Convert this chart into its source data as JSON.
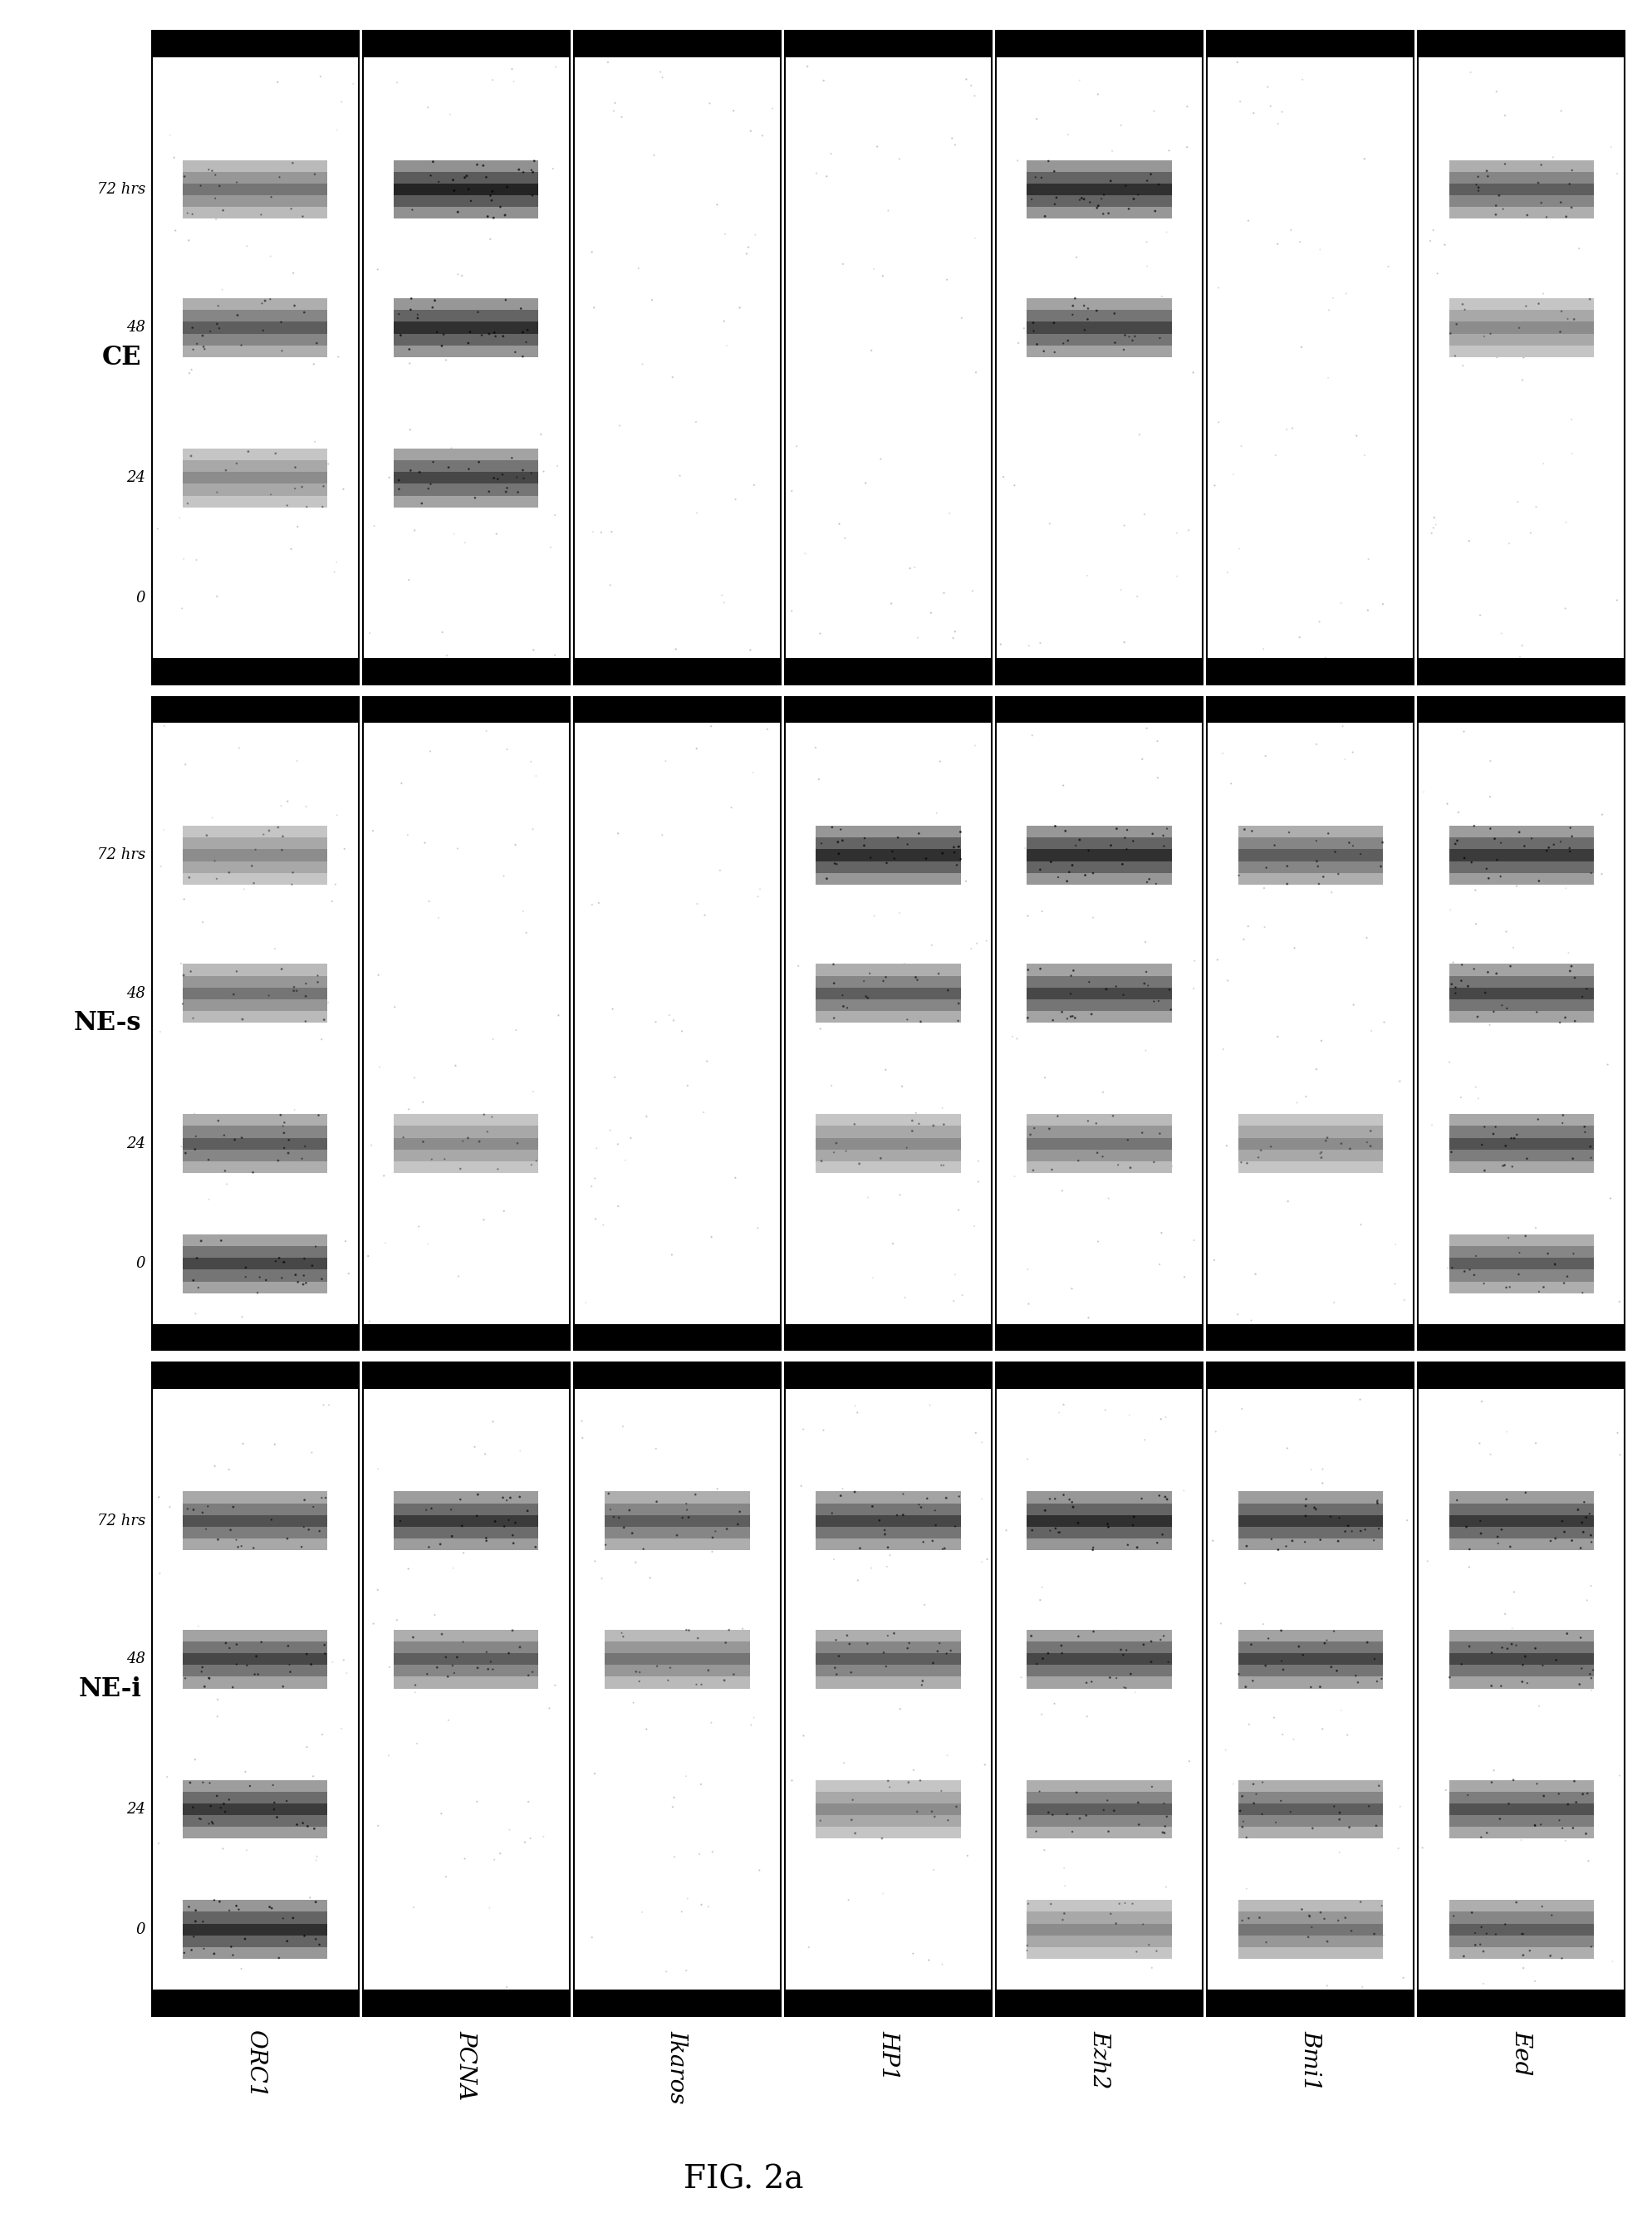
{
  "figure_title": "FIG. 2a",
  "row_labels": [
    "NE-i",
    "NE-s",
    "CE"
  ],
  "col_labels": [
    "ORC1",
    "PCNA",
    "Ikaros",
    "HP1",
    "Ezh2",
    "Bmi1",
    "Eed"
  ],
  "time_labels": [
    "0",
    "24",
    "48",
    "72 hrs"
  ],
  "bg_color": "#ffffff",
  "box_border_color": "#000000",
  "band_color": "#000000",
  "noise_color": "#333333",
  "rows": 3,
  "cols": 7,
  "band_data": {
    "NE-i": {
      "ORC1": {
        "t0": true,
        "t24": true,
        "t48": true,
        "t72": true,
        "intensity": [
          0.9,
          0.85,
          0.8,
          0.75
        ]
      },
      "PCNA": {
        "t0": false,
        "t24": false,
        "t48": true,
        "t72": true,
        "intensity": [
          0,
          0,
          0.7,
          0.85
        ]
      },
      "Ikaros": {
        "t0": false,
        "t24": false,
        "t48": true,
        "t72": true,
        "intensity": [
          0,
          0,
          0.6,
          0.7
        ]
      },
      "HP1": {
        "t0": false,
        "t24": true,
        "t48": true,
        "t72": true,
        "intensity": [
          0,
          0.5,
          0.7,
          0.8
        ]
      },
      "Ezh2": {
        "t0": true,
        "t24": true,
        "t48": true,
        "t72": true,
        "intensity": [
          0.5,
          0.7,
          0.8,
          0.9
        ]
      },
      "Bmi1": {
        "t0": true,
        "t24": true,
        "t48": true,
        "t72": true,
        "intensity": [
          0.6,
          0.7,
          0.8,
          0.85
        ]
      },
      "Eed": {
        "t0": true,
        "t24": true,
        "t48": true,
        "t72": true,
        "intensity": [
          0.7,
          0.75,
          0.8,
          0.85
        ]
      }
    },
    "NE-s": {
      "ORC1": {
        "t0": true,
        "t24": true,
        "t48": true,
        "t72": true,
        "intensity": [
          0.8,
          0.7,
          0.6,
          0.5
        ]
      },
      "PCNA": {
        "t0": false,
        "t24": true,
        "t48": false,
        "t72": false,
        "intensity": [
          0,
          0.5,
          0,
          0
        ]
      },
      "Ikaros": {
        "t0": false,
        "t24": false,
        "t48": false,
        "t72": false,
        "intensity": [
          0,
          0,
          0,
          0
        ]
      },
      "HP1": {
        "t0": false,
        "t24": true,
        "t48": true,
        "t72": true,
        "intensity": [
          0,
          0.5,
          0.7,
          0.9
        ]
      },
      "Ezh2": {
        "t0": false,
        "t24": true,
        "t48": true,
        "t72": true,
        "intensity": [
          0,
          0.6,
          0.8,
          0.9
        ]
      },
      "Bmi1": {
        "t0": false,
        "t24": true,
        "t48": false,
        "t72": true,
        "intensity": [
          0,
          0.5,
          0,
          0.7
        ]
      },
      "Eed": {
        "t0": true,
        "t24": true,
        "t48": true,
        "t72": true,
        "intensity": [
          0.7,
          0.75,
          0.8,
          0.85
        ]
      }
    },
    "CE": {
      "ORC1": {
        "t0": false,
        "t24": true,
        "t48": true,
        "t72": true,
        "intensity": [
          0,
          0.5,
          0.7,
          0.6
        ]
      },
      "PCNA": {
        "t0": false,
        "t24": true,
        "t48": true,
        "t72": true,
        "intensity": [
          0,
          0.8,
          0.9,
          0.95
        ]
      },
      "Ikaros": {
        "t0": false,
        "t24": false,
        "t48": false,
        "t72": false,
        "intensity": [
          0,
          0,
          0,
          0
        ]
      },
      "HP1": {
        "t0": false,
        "t24": false,
        "t48": false,
        "t72": false,
        "intensity": [
          0,
          0,
          0,
          0
        ]
      },
      "Ezh2": {
        "t0": false,
        "t24": false,
        "t48": true,
        "t72": true,
        "intensity": [
          0,
          0,
          0.8,
          0.9
        ]
      },
      "Bmi1": {
        "t0": false,
        "t24": false,
        "t48": false,
        "t72": false,
        "intensity": [
          0,
          0,
          0,
          0
        ]
      },
      "Eed": {
        "t0": false,
        "t24": false,
        "t48": true,
        "t72": true,
        "intensity": [
          0,
          0,
          0.5,
          0.7
        ]
      }
    }
  }
}
